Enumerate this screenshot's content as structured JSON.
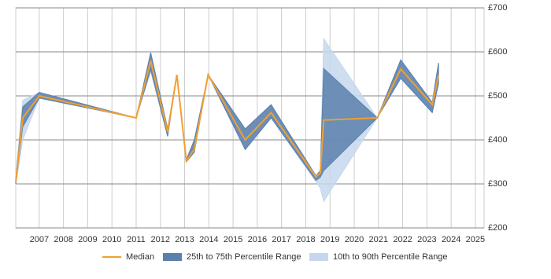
{
  "chart_data": {
    "type": "line",
    "x": [
      2006.03,
      2006.32,
      2007.0,
      2011.0,
      2011.6,
      2012.3,
      2012.68,
      2013.07,
      2013.4,
      2013.97,
      2015.5,
      2016.57,
      2018.42,
      2018.6,
      2018.74,
      2020.95,
      2021.92,
      2023.22,
      2023.48
    ],
    "series": [
      {
        "name": "10th to 90th Percentile Range",
        "color": "#c6d7ec",
        "kind": "band",
        "lower": [
          296,
          400,
          495,
          450,
          555,
          408,
          548,
          350,
          372,
          548,
          378,
          450,
          305,
          290,
          260,
          450,
          540,
          462,
          528
        ],
        "upper": [
          315,
          490,
          508,
          450,
          600,
          425,
          548,
          355,
          400,
          548,
          425,
          480,
          320,
          330,
          630,
          450,
          582,
          485,
          575
        ]
      },
      {
        "name": "25th to 75th Percentile Range",
        "color": "#5b80ad",
        "kind": "band",
        "lower": [
          300,
          430,
          495,
          450,
          560,
          408,
          548,
          350,
          372,
          548,
          378,
          450,
          308,
          315,
          330,
          450,
          540,
          462,
          528
        ],
        "upper": [
          310,
          475,
          508,
          450,
          598,
          425,
          548,
          355,
          400,
          548,
          425,
          480,
          318,
          330,
          562,
          450,
          582,
          485,
          575
        ]
      },
      {
        "name": "Median",
        "color": "#f0a030",
        "kind": "line",
        "values": [
          304,
          450,
          500,
          450,
          580,
          418,
          548,
          352,
          379,
          548,
          400,
          462,
          316,
          325,
          445,
          450,
          561,
          480,
          548
        ]
      }
    ],
    "legend_order": [
      2,
      1,
      0
    ],
    "xlim": [
      2006.03,
      2025.36
    ],
    "xticks": [
      2007,
      2008,
      2009,
      2010,
      2011,
      2012,
      2013,
      2014,
      2015,
      2016,
      2017,
      2018,
      2019,
      2020,
      2021,
      2022,
      2023,
      2024,
      2025
    ],
    "ylim": [
      200,
      700
    ],
    "yticks": [
      {
        "value": 200,
        "label": "£200"
      },
      {
        "value": 300,
        "label": "£300"
      },
      {
        "value": 400,
        "label": "£400"
      },
      {
        "value": 500,
        "label": "£500"
      },
      {
        "value": 600,
        "label": "£600"
      },
      {
        "value": 700,
        "label": "£700"
      }
    ],
    "grid": true
  }
}
